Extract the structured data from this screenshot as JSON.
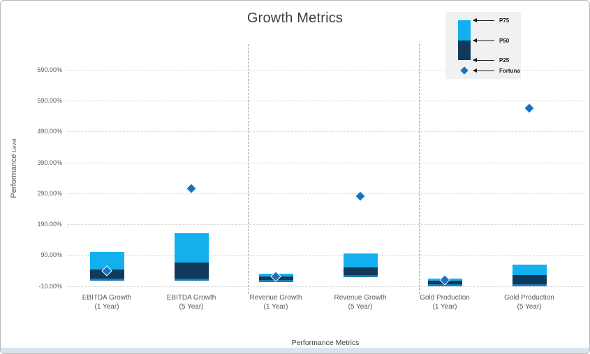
{
  "title": "Growth Metrics",
  "colors": {
    "p75": "#12b1ee",
    "p50": "#113a5a",
    "bar_base": "#1e7bb8",
    "fortuna": "#1473c4",
    "grid": "#d9d9d9",
    "separator": "#8fa9c2",
    "legend_bg": "#f1f1f1",
    "axis_text": "#595959",
    "title_text": "#3f3f3f"
  },
  "chart_data": {
    "type": "bar",
    "subtype": "floating-stacked-range-with-scatter-markers",
    "title": "Growth Metrics",
    "xlabel": "Performance Metrics",
    "ylabel": "Performance Level",
    "grid": "horizontal-dashed",
    "legend_position": "top-right",
    "legend": [
      "P75",
      "P50",
      "P25",
      "Fortuna"
    ],
    "categories": [
      {
        "line1": "EBITDA Growth",
        "line2": "(1 Year)"
      },
      {
        "line1": "EBITDA Growth",
        "line2": "(5 Year)"
      },
      {
        "line1": "Revenue Growth",
        "line2": "(1 Year)"
      },
      {
        "line1": "Revenue Growth",
        "line2": "(5 Year)"
      },
      {
        "line1": "Gold Production",
        "line2": "(1 Year)"
      },
      {
        "line1": "Gold Production",
        "line2": "(5 Year)"
      }
    ],
    "series": [
      {
        "name": "P75",
        "role": "range-top",
        "values": [
          100,
          160,
          30,
          95,
          15,
          60
        ]
      },
      {
        "name": "P50",
        "role": "range-mid",
        "values": [
          43,
          65,
          22,
          50,
          8,
          25
        ]
      },
      {
        "name": "P25",
        "role": "range-bottom",
        "values": [
          15,
          15,
          10,
          25,
          -5,
          -5
        ]
      },
      {
        "name": "Fortuna",
        "role": "scatter-marker",
        "values": [
          40,
          305,
          20,
          280,
          10,
          565
        ]
      }
    ],
    "yticks": [
      690,
      590,
      490,
      390,
      290,
      190,
      90,
      -10
    ],
    "ytick_labels": [
      "690.00%",
      "590.00%",
      "490.00%",
      "390.00%",
      "290.00%",
      "190.00%",
      "90.00%",
      "-10.00%"
    ],
    "ylim": [
      -10,
      780
    ],
    "value_unit": "%",
    "group_separators_between": [
      "EBITDA/Revenue",
      "Revenue/Gold"
    ]
  }
}
